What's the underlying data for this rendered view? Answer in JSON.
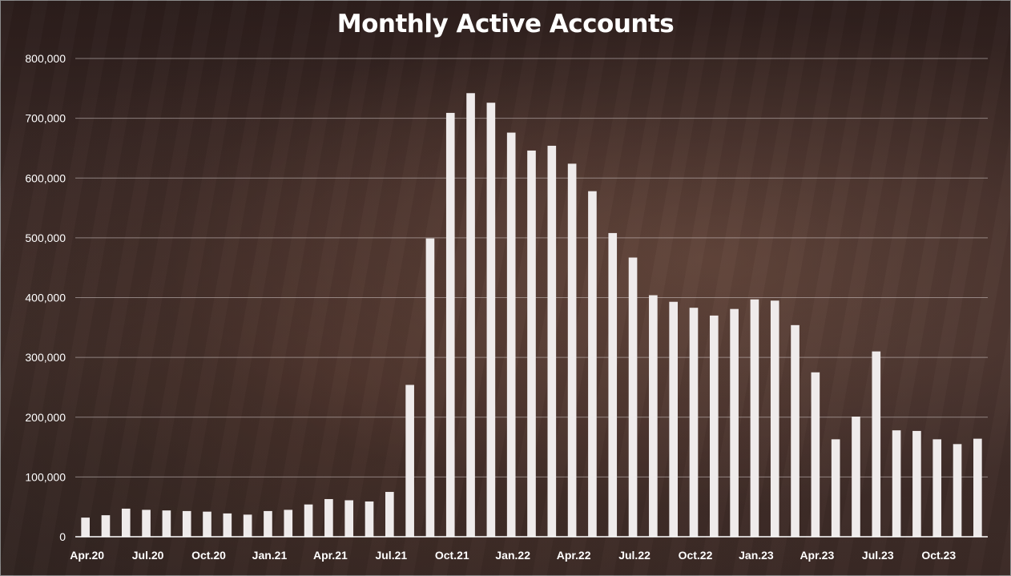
{
  "chart_data": {
    "type": "bar",
    "title": "Monthly Active Accounts",
    "xlabel": "",
    "ylabel": "",
    "ylim": [
      0,
      800000
    ],
    "yticks": [
      0,
      100000,
      200000,
      300000,
      400000,
      500000,
      600000,
      700000,
      800000
    ],
    "ytick_labels": [
      "0",
      "100,000",
      "200,000",
      "300,000",
      "400,000",
      "500,000",
      "600,000",
      "700,000",
      "800,000"
    ],
    "grid": "horizontal",
    "legend": "none",
    "categories": [
      "Apr.20",
      "May.20",
      "Jun.20",
      "Jul.20",
      "Aug.20",
      "Sep.20",
      "Oct.20",
      "Nov.20",
      "Dec.20",
      "Jan.21",
      "Feb.21",
      "Mar.21",
      "Apr.21",
      "May.21",
      "Jun.21",
      "Jul.21",
      "Aug.21",
      "Sep.21",
      "Oct.21",
      "Nov.21",
      "Dec.21",
      "Jan.22",
      "Feb.22",
      "Mar.22",
      "Apr.22",
      "May.22",
      "Jun.22",
      "Jul.22",
      "Aug.22",
      "Sep.22",
      "Oct.22",
      "Nov.22",
      "Dec.22",
      "Jan.23",
      "Feb.23",
      "Mar.23",
      "Apr.23",
      "May.23",
      "Jun.23",
      "Jul.23",
      "Aug.23",
      "Sep.23",
      "Oct.23",
      "Nov.23",
      "Dec.23"
    ],
    "xtick_labels": [
      {
        "index": 0,
        "label": "Apr.20"
      },
      {
        "index": 3,
        "label": "Jul.20"
      },
      {
        "index": 6,
        "label": "Oct.20"
      },
      {
        "index": 9,
        "label": "Jan.21"
      },
      {
        "index": 12,
        "label": "Apr.21"
      },
      {
        "index": 15,
        "label": "Jul.21"
      },
      {
        "index": 18,
        "label": "Oct.21"
      },
      {
        "index": 21,
        "label": "Jan.22"
      },
      {
        "index": 24,
        "label": "Apr.22"
      },
      {
        "index": 27,
        "label": "Jul.22"
      },
      {
        "index": 30,
        "label": "Oct.22"
      },
      {
        "index": 33,
        "label": "Jan.23"
      },
      {
        "index": 36,
        "label": "Apr.23"
      },
      {
        "index": 39,
        "label": "Jul.23"
      },
      {
        "index": 42,
        "label": "Oct.23"
      }
    ],
    "values": [
      32000,
      36000,
      47000,
      45000,
      44000,
      43000,
      42000,
      39000,
      37000,
      43000,
      45000,
      54000,
      63000,
      61000,
      59000,
      75000,
      254000,
      499000,
      709000,
      742000,
      726000,
      676000,
      646000,
      654000,
      624000,
      578000,
      508000,
      467000,
      404000,
      393000,
      383000,
      370000,
      381000,
      397000,
      395000,
      354000,
      275000,
      163000,
      201000,
      310000,
      178000,
      177000,
      163000,
      155000,
      164000
    ],
    "colors": {
      "bar": "#efebeb",
      "text": "#ffffff",
      "grid": "#c8bebe"
    }
  }
}
